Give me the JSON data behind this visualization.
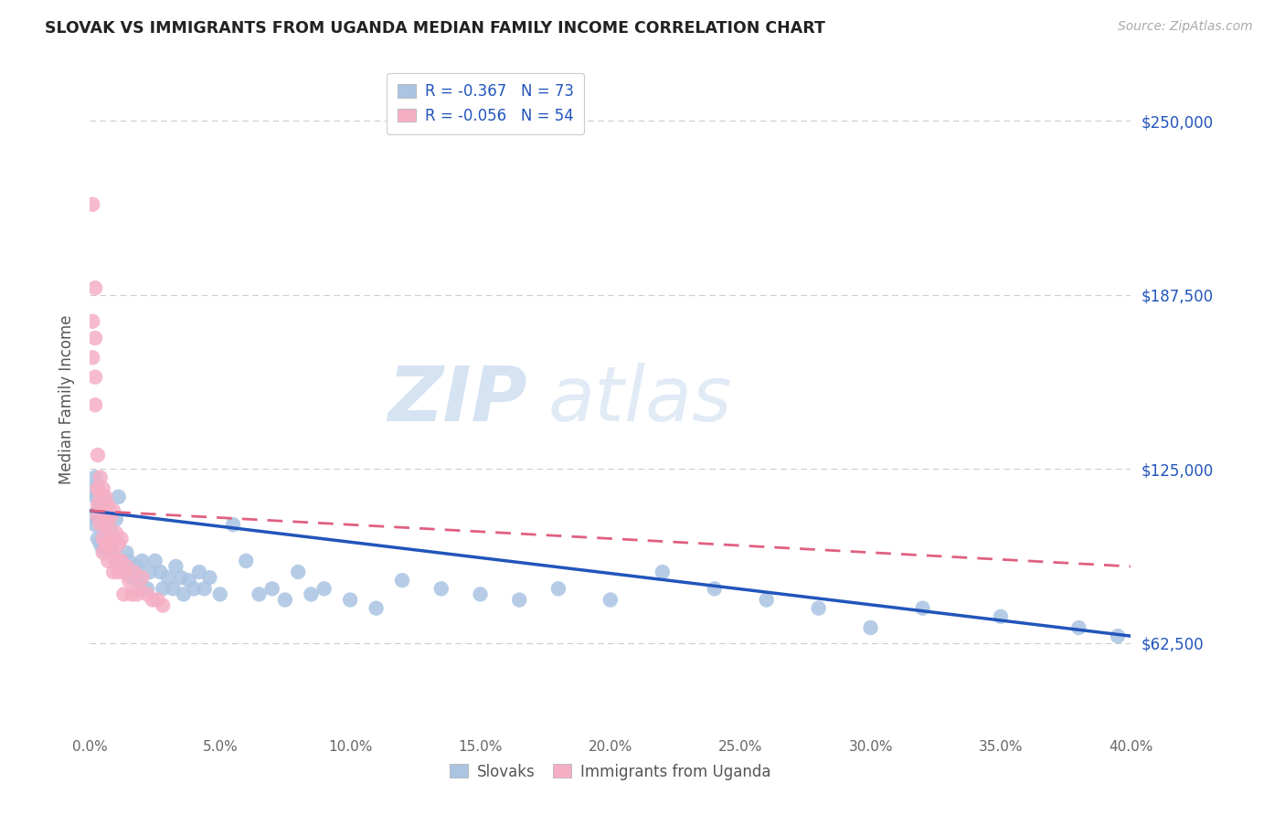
{
  "title": "SLOVAK VS IMMIGRANTS FROM UGANDA MEDIAN FAMILY INCOME CORRELATION CHART",
  "source": "Source: ZipAtlas.com",
  "ylabel": "Median Family Income",
  "y_ticks": [
    62500,
    125000,
    187500,
    250000
  ],
  "y_tick_labels": [
    "$62,500",
    "$125,000",
    "$187,500",
    "$250,000"
  ],
  "x_range": [
    0.0,
    0.4
  ],
  "y_range": [
    30000,
    270000
  ],
  "legend_r1": "R = -0.367",
  "legend_n1": "N = 73",
  "legend_r2": "R = -0.056",
  "legend_n2": "N = 54",
  "color_slovak": "#aac4e2",
  "color_uganda": "#f5afc5",
  "color_line_slovak": "#2255bb",
  "color_line_uganda": "#e06080",
  "watermark_zip": "ZIP",
  "watermark_atlas": "atlas",
  "slovak_x": [
    0.001,
    0.001,
    0.002,
    0.002,
    0.002,
    0.003,
    0.003,
    0.003,
    0.004,
    0.004,
    0.004,
    0.005,
    0.005,
    0.005,
    0.006,
    0.006,
    0.007,
    0.007,
    0.008,
    0.008,
    0.009,
    0.01,
    0.01,
    0.011,
    0.012,
    0.013,
    0.014,
    0.015,
    0.016,
    0.018,
    0.019,
    0.02,
    0.022,
    0.023,
    0.025,
    0.027,
    0.028,
    0.03,
    0.032,
    0.033,
    0.035,
    0.036,
    0.038,
    0.04,
    0.042,
    0.044,
    0.046,
    0.05,
    0.055,
    0.06,
    0.065,
    0.07,
    0.075,
    0.08,
    0.085,
    0.09,
    0.1,
    0.11,
    0.12,
    0.135,
    0.15,
    0.165,
    0.18,
    0.2,
    0.22,
    0.24,
    0.26,
    0.28,
    0.3,
    0.32,
    0.35,
    0.38,
    0.395
  ],
  "slovak_y": [
    118000,
    108000,
    115000,
    105000,
    122000,
    110000,
    100000,
    115000,
    107000,
    98000,
    112000,
    104000,
    96000,
    115000,
    102000,
    110000,
    98000,
    108000,
    96000,
    103000,
    100000,
    107000,
    92000,
    115000,
    90000,
    88000,
    95000,
    92000,
    86000,
    90000,
    85000,
    92000,
    82000,
    88000,
    92000,
    88000,
    82000,
    86000,
    82000,
    90000,
    86000,
    80000,
    85000,
    82000,
    88000,
    82000,
    86000,
    80000,
    105000,
    92000,
    80000,
    82000,
    78000,
    88000,
    80000,
    82000,
    78000,
    75000,
    85000,
    82000,
    80000,
    78000,
    82000,
    78000,
    88000,
    82000,
    78000,
    75000,
    68000,
    75000,
    72000,
    68000,
    65000
  ],
  "uganda_x": [
    0.001,
    0.001,
    0.001,
    0.002,
    0.002,
    0.002,
    0.002,
    0.003,
    0.003,
    0.003,
    0.003,
    0.003,
    0.004,
    0.004,
    0.004,
    0.004,
    0.005,
    0.005,
    0.005,
    0.005,
    0.006,
    0.006,
    0.006,
    0.006,
    0.007,
    0.007,
    0.007,
    0.007,
    0.007,
    0.008,
    0.008,
    0.008,
    0.009,
    0.009,
    0.009,
    0.01,
    0.01,
    0.011,
    0.011,
    0.012,
    0.012,
    0.013,
    0.013,
    0.014,
    0.015,
    0.016,
    0.017,
    0.018,
    0.019,
    0.02,
    0.022,
    0.024,
    0.026,
    0.028
  ],
  "uganda_y": [
    220000,
    178000,
    165000,
    190000,
    172000,
    158000,
    148000,
    130000,
    118000,
    112000,
    108000,
    118000,
    122000,
    110000,
    105000,
    115000,
    110000,
    118000,
    100000,
    95000,
    112000,
    105000,
    98000,
    115000,
    108000,
    98000,
    105000,
    92000,
    112000,
    108000,
    100000,
    98000,
    110000,
    95000,
    88000,
    102000,
    92000,
    98000,
    88000,
    100000,
    92000,
    88000,
    80000,
    90000,
    85000,
    80000,
    88000,
    80000,
    82000,
    86000,
    80000,
    78000,
    78000,
    76000
  ]
}
